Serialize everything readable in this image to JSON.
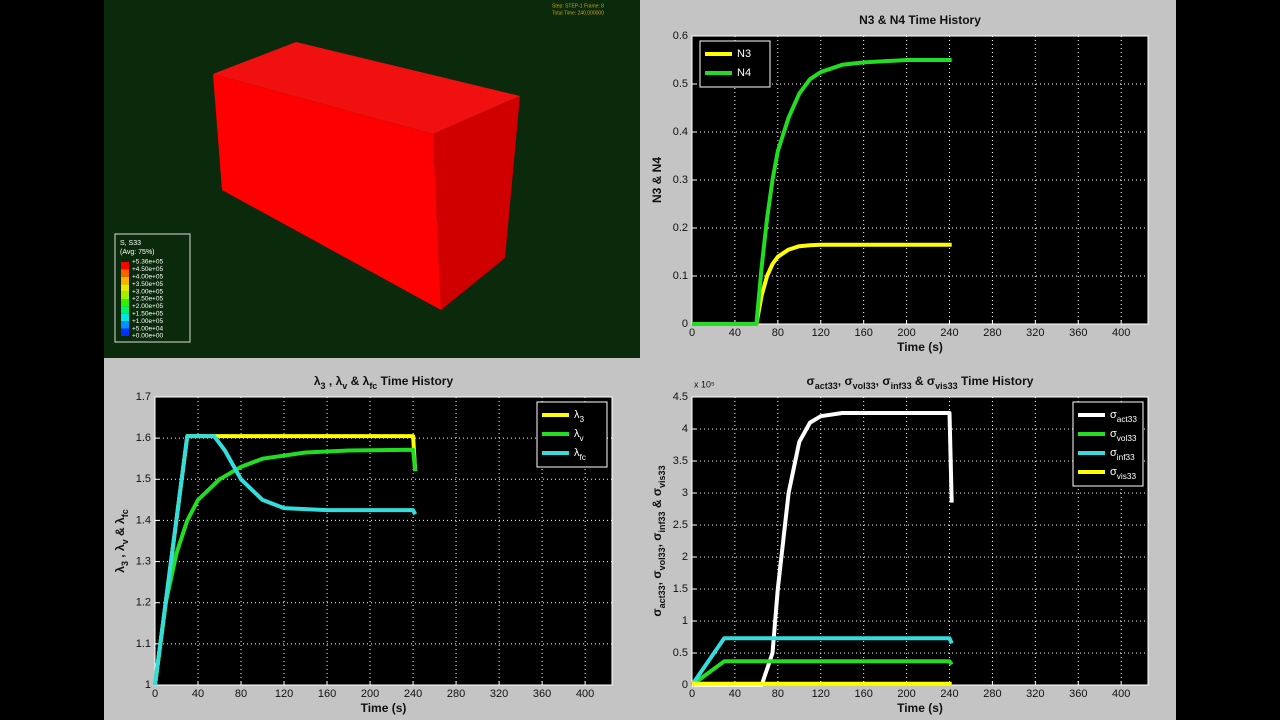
{
  "viewport": {
    "status": [
      "Step: STEP-1    Frame: 8",
      "Total Time: 240.000000"
    ],
    "legend_title": "S, S33",
    "legend_subtitle": "(Avg: 75%)",
    "legend_labels": [
      "+5.36e+05",
      "+4.50e+05",
      "+4.00e+05",
      "+3.50e+05",
      "+3.00e+05",
      "+2.50e+05",
      "+2.00e+05",
      "+1.50e+05",
      "+1.00e+05",
      "+5.00e+04",
      "+0.00e+00"
    ],
    "legend_colors": [
      "#ff0000",
      "#ff6000",
      "#ffb000",
      "#e8e800",
      "#a0f000",
      "#30f000",
      "#00f070",
      "#00e8e0",
      "#0090ff",
      "#0030ff"
    ]
  },
  "chart_data": [
    {
      "type": "line",
      "title": "N3 & N4 Time History",
      "xlabel": "Time (s)",
      "ylabel": "N3 & N4",
      "xlim": [
        0,
        425
      ],
      "ylim": [
        0,
        0.6
      ],
      "xticks": [
        0,
        40,
        80,
        120,
        160,
        200,
        240,
        280,
        320,
        360,
        400
      ],
      "yticks": [
        0,
        0.1,
        0.2,
        0.3,
        0.4,
        0.5,
        0.6
      ],
      "grid": true,
      "legend": "upper-left",
      "series": [
        {
          "name": "N3",
          "color": "#ffff00",
          "x": [
            0,
            60,
            65,
            70,
            75,
            80,
            90,
            100,
            110,
            120,
            140,
            160,
            200,
            242
          ],
          "values": [
            0,
            0,
            0.06,
            0.1,
            0.125,
            0.14,
            0.155,
            0.162,
            0.164,
            0.165,
            0.165,
            0.165,
            0.165,
            0.165
          ]
        },
        {
          "name": "N4",
          "color": "#22dd22",
          "x": [
            0,
            60,
            65,
            70,
            75,
            80,
            90,
            100,
            110,
            120,
            140,
            160,
            200,
            242
          ],
          "values": [
            0,
            0,
            0.12,
            0.22,
            0.3,
            0.36,
            0.43,
            0.48,
            0.51,
            0.525,
            0.54,
            0.545,
            0.55,
            0.55
          ]
        }
      ]
    },
    {
      "type": "line",
      "title": "λ3 , λv & λfc Time History",
      "xlabel": "Time (s)",
      "ylabel": "λ3 , λv & λfc",
      "xlim": [
        0,
        425
      ],
      "ylim": [
        1,
        1.7
      ],
      "xticks": [
        0,
        40,
        80,
        120,
        160,
        200,
        240,
        280,
        320,
        360,
        400
      ],
      "yticks": [
        1,
        1.1,
        1.2,
        1.3,
        1.4,
        1.5,
        1.6,
        1.7
      ],
      "grid": true,
      "legend": "upper-right",
      "series": [
        {
          "name": "λ3",
          "color": "#ffff00",
          "x": [
            0,
            30,
            240,
            242
          ],
          "values": [
            1,
            1.605,
            1.605,
            1.52
          ]
        },
        {
          "name": "λv",
          "color": "#22dd22",
          "x": [
            0,
            10,
            20,
            30,
            40,
            60,
            80,
            100,
            140,
            180,
            240,
            242
          ],
          "values": [
            1,
            1.2,
            1.32,
            1.4,
            1.45,
            1.5,
            1.53,
            1.55,
            1.565,
            1.57,
            1.572,
            1.52
          ]
        },
        {
          "name": "λfc",
          "color": "#33dddd",
          "x": [
            0,
            30,
            55,
            65,
            80,
            100,
            120,
            160,
            240,
            242
          ],
          "values": [
            1,
            1.605,
            1.605,
            1.57,
            1.5,
            1.45,
            1.43,
            1.425,
            1.425,
            1.415
          ]
        }
      ]
    },
    {
      "type": "line",
      "title": "σact33, σvol33, σinf33 & σvis33 Time History",
      "xlabel": "Time (s)",
      "ylabel": "σact33, σvol33, σinf33 & σvis33",
      "multiplier": "x 10⁵",
      "xlim": [
        0,
        425
      ],
      "ylim": [
        0,
        450000
      ],
      "xticks": [
        0,
        40,
        80,
        120,
        160,
        200,
        240,
        280,
        320,
        360,
        400
      ],
      "yticks": [
        0,
        {
          "value": 50000,
          "label": "0.5"
        },
        {
          "value": 100000,
          "label": "1"
        },
        {
          "value": 150000,
          "label": "1.5"
        },
        {
          "value": 200000,
          "label": "2"
        },
        {
          "value": 250000,
          "label": "2.5"
        },
        {
          "value": 300000,
          "label": "3"
        },
        {
          "value": 350000,
          "label": "3.5"
        },
        {
          "value": 400000,
          "label": "4"
        },
        {
          "value": 450000,
          "label": "4.5"
        }
      ],
      "grid": true,
      "legend": "upper-right",
      "series": [
        {
          "name": "σact33",
          "color": "#ffffff",
          "x": [
            0,
            65,
            75,
            80,
            90,
            100,
            110,
            120,
            140,
            240,
            242
          ],
          "values": [
            0,
            0,
            50000,
            150000,
            300000,
            380000,
            410000,
            420000,
            425000,
            425000,
            285000
          ]
        },
        {
          "name": "σvol33",
          "color": "#22dd22",
          "x": [
            0,
            30,
            240,
            242
          ],
          "values": [
            0,
            37000,
            37000,
            32000
          ]
        },
        {
          "name": "σinf33",
          "color": "#33dddd",
          "x": [
            0,
            30,
            240,
            242
          ],
          "values": [
            0,
            73000,
            73000,
            65000
          ]
        },
        {
          "name": "σvis33",
          "color": "#ffff00",
          "x": [
            0,
            30,
            240,
            242
          ],
          "values": [
            2000,
            2000,
            2000,
            2000
          ]
        }
      ]
    }
  ]
}
